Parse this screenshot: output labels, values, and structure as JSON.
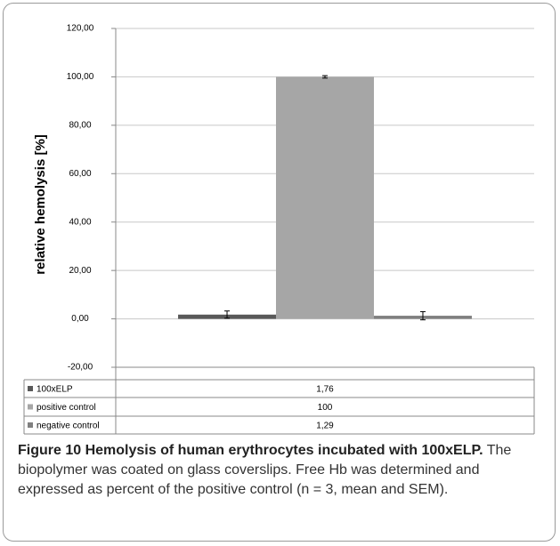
{
  "chart_data": {
    "type": "bar",
    "ylabel": "relative hemolysis [%]",
    "categories": [
      null
    ],
    "series": [
      {
        "name": "100xELP",
        "color": "#595959",
        "values": [
          1.76
        ],
        "value_labels": [
          "1,76"
        ],
        "errors": [
          1.5
        ]
      },
      {
        "name": "positive control",
        "color": "#a6a6a6",
        "values": [
          100
        ],
        "value_labels": [
          "100"
        ],
        "errors": [
          0.5
        ]
      },
      {
        "name": "negative control",
        "color": "#808080",
        "values": [
          1.29
        ],
        "value_labels": [
          "1,29"
        ],
        "errors": [
          1.7
        ]
      }
    ],
    "ylim": [
      -20,
      120
    ],
    "yticks": [
      {
        "value": -20,
        "label": "-20,00"
      },
      {
        "value": 0,
        "label": "0,00"
      },
      {
        "value": 20,
        "label": "20,00"
      },
      {
        "value": 40,
        "label": "40,00"
      },
      {
        "value": 60,
        "label": "60,00"
      },
      {
        "value": 80,
        "label": "80,00"
      },
      {
        "value": 100,
        "label": "100,00"
      },
      {
        "value": 120,
        "label": "120,00"
      }
    ],
    "grid": true
  },
  "caption": {
    "title": "Figure 10 Hemolysis of human erythrocytes incubated with 100xELP.",
    "text": "The biopolymer was coated on glass coverslips. Free Hb was determined and expressed as percent of the positive control (n = 3, mean and SEM)."
  }
}
